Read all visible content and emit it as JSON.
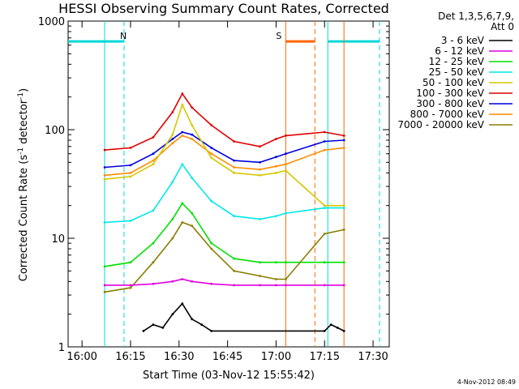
{
  "chart_data": {
    "type": "line",
    "title": "HESSI Observing Summary Count Rates, Corrected",
    "xlabel": "Start Time (03-Nov-12 15:55:42)",
    "ylabel": "Corrected Count Rate (s",
    "ylabel_sup1": "-1",
    "ylabel_mid": " detector",
    "ylabel_sup2": "-1",
    "ylabel_end": ")",
    "yscale": "log",
    "xlim": [
      "15:55:42",
      "17:35:00"
    ],
    "ylim": [
      1,
      1000
    ],
    "x_ticks": [
      "16:00",
      "16:15",
      "16:30",
      "16:45",
      "17:00",
      "17:15",
      "17:30"
    ],
    "y_ticks": [
      "1",
      "10",
      "100",
      "1000"
    ],
    "legend": {
      "position": "top-right",
      "header": [
        "Det 1,3,5,6,7,9,",
        "Att 0"
      ],
      "entries": [
        {
          "label": "3 - 6 keV",
          "color": "#000000"
        },
        {
          "label": "6 - 12 keV",
          "color": "#e000e0"
        },
        {
          "label": "12 - 25 keV",
          "color": "#00e000"
        },
        {
          "label": "25 - 50 keV",
          "color": "#00e8e8"
        },
        {
          "label": "50 - 100 keV",
          "color": "#d4c800"
        },
        {
          "label": "100 - 300 keV",
          "color": "#e00000"
        },
        {
          "label": "300 - 800 keV",
          "color": "#0000e0"
        },
        {
          "label": "800 - 7000 keV",
          "color": "#ff8c00"
        },
        {
          "label": "7000 - 20000 keV",
          "color": "#8b7d00"
        }
      ]
    },
    "flags": [
      {
        "label": "N",
        "color": "#00d8d8",
        "start": "15:55:42",
        "end": "16:13:00"
      },
      {
        "label": "S",
        "color": "#ff6600",
        "start": "17:03:00",
        "end": "17:12:00"
      },
      {
        "label": "",
        "color": "#00d8d8",
        "start": "17:16:00",
        "end": "17:32:00"
      }
    ],
    "series": [
      {
        "color": "#e00000",
        "x": [
          "16:07",
          "16:15",
          "16:22",
          "16:28",
          "16:31",
          "16:34",
          "16:40",
          "16:47",
          "16:55",
          "17:00",
          "17:03",
          "17:15",
          "17:21"
        ],
        "y": [
          65,
          68,
          85,
          145,
          215,
          160,
          110,
          78,
          70,
          82,
          88,
          95,
          88
        ]
      },
      {
        "color": "#0000e0",
        "x": [
          "16:07",
          "16:15",
          "16:22",
          "16:28",
          "16:31",
          "16:34",
          "16:40",
          "16:47",
          "16:55",
          "17:00",
          "17:03",
          "17:15",
          "17:21"
        ],
        "y": [
          45,
          47,
          60,
          82,
          95,
          90,
          68,
          52,
          50,
          56,
          60,
          78,
          80
        ]
      },
      {
        "color": "#ff8c00",
        "x": [
          "16:07",
          "16:15",
          "16:22",
          "16:28",
          "16:31",
          "16:34",
          "16:40",
          "16:47",
          "16:55",
          "17:00",
          "17:03",
          "17:15",
          "17:21"
        ],
        "y": [
          38,
          40,
          52,
          75,
          88,
          82,
          60,
          45,
          43,
          46,
          48,
          65,
          68
        ]
      },
      {
        "color": "#d4c800",
        "x": [
          "16:07",
          "16:15",
          "16:22",
          "16:28",
          "16:31",
          "16:34",
          "16:40",
          "16:47",
          "16:55",
          "17:00",
          "17:03",
          "17:15",
          "17:21"
        ],
        "y": [
          35,
          37,
          48,
          90,
          170,
          110,
          55,
          40,
          38,
          40,
          42,
          20,
          20
        ]
      },
      {
        "color": "#00e8e8",
        "x": [
          "16:07",
          "16:15",
          "16:22",
          "16:28",
          "16:31",
          "16:34",
          "16:40",
          "16:47",
          "16:55",
          "17:00",
          "17:03",
          "17:15",
          "17:21"
        ],
        "y": [
          14,
          14.5,
          18,
          33,
          48,
          36,
          22,
          16,
          15,
          16,
          17,
          19,
          19
        ]
      },
      {
        "color": "#00e000",
        "x": [
          "16:07",
          "16:15",
          "16:22",
          "16:28",
          "16:31",
          "16:34",
          "16:40",
          "16:47",
          "16:55",
          "17:00",
          "17:03",
          "17:15",
          "17:21"
        ],
        "y": [
          5.5,
          6,
          9,
          15,
          21,
          17,
          9,
          6.5,
          6,
          6,
          6,
          6,
          6
        ]
      },
      {
        "color": "#8b7d00",
        "x": [
          "16:07",
          "16:15",
          "16:22",
          "16:28",
          "16:31",
          "16:34",
          "16:40",
          "16:47",
          "16:55",
          "17:00",
          "17:03",
          "17:15",
          "17:21"
        ],
        "y": [
          3.2,
          3.5,
          6,
          10,
          14,
          13,
          8,
          5,
          4.5,
          4.2,
          4.2,
          11,
          12
        ]
      },
      {
        "color": "#e000e0",
        "x": [
          "16:07",
          "16:15",
          "16:22",
          "16:28",
          "16:31",
          "16:34",
          "16:40",
          "16:47",
          "16:55",
          "17:00",
          "17:03",
          "17:15",
          "17:21"
        ],
        "y": [
          3.7,
          3.7,
          3.8,
          4,
          4.2,
          4,
          3.8,
          3.7,
          3.7,
          3.7,
          3.7,
          3.7,
          3.7
        ]
      },
      {
        "color": "#000000",
        "x": [
          "16:19",
          "16:22",
          "16:25",
          "16:28",
          "16:31",
          "16:34",
          "16:37",
          "16:40",
          "17:15",
          "17:17",
          "17:19",
          "17:21"
        ],
        "y": [
          1.4,
          1.6,
          1.5,
          2,
          2.5,
          1.8,
          1.6,
          1.4,
          1.4,
          1.6,
          1.5,
          1.4
        ]
      }
    ],
    "footer_date": "4-Nov-2012 08:49",
    "grid": false
  }
}
